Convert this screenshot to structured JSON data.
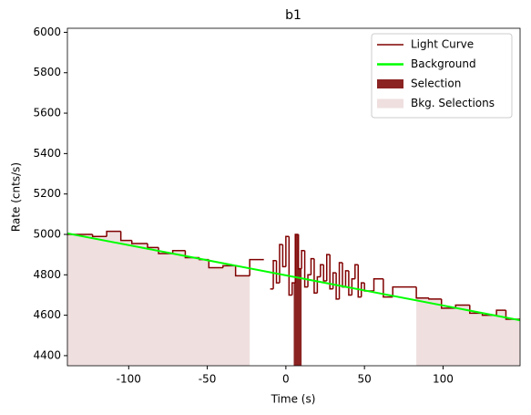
{
  "chart_data": {
    "type": "line",
    "title": "b1",
    "x_label": "Time (s)",
    "y_label": "Rate (cnts/s)",
    "xlim": [
      -139,
      149
    ],
    "ylim": [
      4350,
      6020
    ],
    "xticks": [
      -100,
      -50,
      0,
      50,
      100
    ],
    "yticks": [
      4400,
      4600,
      4800,
      5000,
      5200,
      5400,
      5600,
      5800,
      6000
    ],
    "legend": "upper right",
    "series": [
      {
        "name": "Light Curve",
        "color": "#800000",
        "drawstyle": "steps",
        "bins": [
          -139,
          -123,
          -114,
          -105,
          -98,
          -88,
          -81,
          -72,
          -64,
          -55,
          -49,
          -40,
          -32,
          -23,
          -14,
          -10,
          -8,
          -6,
          -4,
          -2,
          0,
          2,
          4,
          6,
          8,
          10,
          12,
          14,
          16,
          18,
          20,
          22,
          24,
          26,
          28,
          30,
          32,
          34,
          36,
          38,
          40,
          42,
          44,
          46,
          48,
          50,
          56,
          62,
          68,
          83,
          91,
          99,
          108,
          117,
          125,
          134,
          140,
          149
        ],
        "values": [
          5000,
          4990,
          5015,
          4970,
          4955,
          4935,
          4905,
          4920,
          4885,
          4875,
          4835,
          4845,
          4795,
          4875,
          null,
          4730,
          4870,
          4760,
          4950,
          4840,
          4990,
          4700,
          4760,
          5000,
          4830,
          4920,
          4740,
          4800,
          4880,
          4710,
          4790,
          4850,
          4770,
          4900,
          4730,
          4810,
          4680,
          4860,
          4740,
          4820,
          4700,
          4780,
          4850,
          4690,
          4760,
          4720,
          4780,
          4690,
          4740,
          4685,
          4680,
          4635,
          4650,
          4610,
          4600,
          4625,
          4580
        ]
      },
      {
        "name": "Background",
        "color": "#00ff00",
        "x": [
          -139,
          149
        ],
        "values": [
          5005,
          4575
        ]
      }
    ],
    "spans": [
      {
        "name": "Selection",
        "color": "#8b2323",
        "ranges": [
          [
            5,
            10
          ]
        ]
      },
      {
        "name": "Bkg. Selections",
        "color": "#efdfdf",
        "ranges": [
          [
            -139,
            -23
          ],
          [
            83,
            149
          ]
        ]
      }
    ]
  }
}
